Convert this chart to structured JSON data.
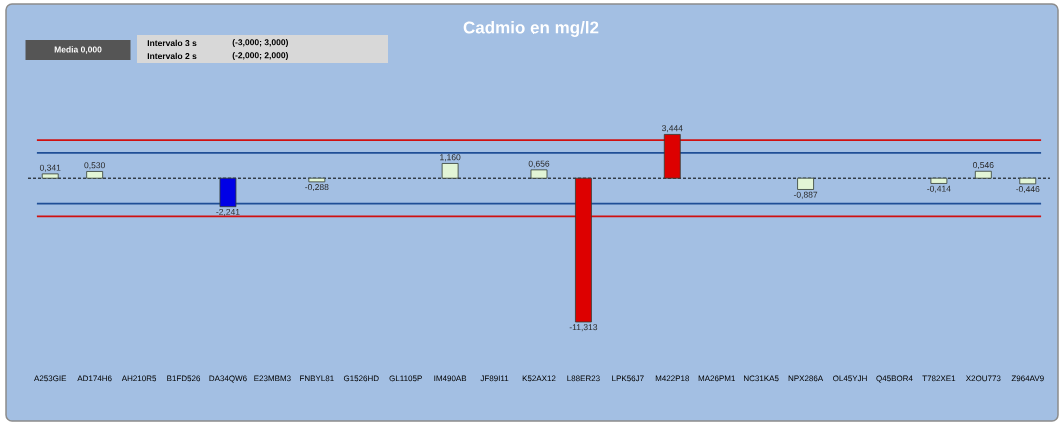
{
  "chart_data": {
    "type": "bar",
    "title": "Cadmio en mg/l2",
    "categories": [
      "A253GIE",
      "AD174H6",
      "AH210R5",
      "B1FD526",
      "DA34QW6",
      "E23MBM3",
      "FNBYL81",
      "G1526HD",
      "GL1105P",
      "IM490AB",
      "JF89I11",
      "K52AX12",
      "L88ER23",
      "LPK56J7",
      "M422P18",
      "MA26PM1",
      "NC31KA5",
      "NPX286A",
      "OL45YJH",
      "Q45BOR4",
      "T782XE1",
      "X2OU773",
      "Z964AV9"
    ],
    "values": [
      0.341,
      0.53,
      null,
      null,
      -2.241,
      null,
      -0.288,
      null,
      null,
      1.16,
      null,
      0.656,
      -11.313,
      null,
      3.444,
      null,
      null,
      -0.887,
      null,
      null,
      -0.414,
      0.546,
      -0.446
    ],
    "value_labels": [
      "0,341",
      "0,530",
      null,
      null,
      "-2,241",
      null,
      "-0,288",
      null,
      null,
      "1,160",
      null,
      "0,656",
      "-11,313",
      null,
      "3,444",
      null,
      null,
      "-0,887",
      null,
      null,
      "-0,414",
      "0,546",
      "-0,446"
    ],
    "colors": [
      "#e2f5d6",
      "#e2f5d6",
      "#e2f5d6",
      "#e2f5d6",
      "#0000e6",
      "#e2f5d6",
      "#e2f5d6",
      "#e2f5d6",
      "#e2f5d6",
      "#e2f5d6",
      "#e2f5d6",
      "#e2f5d6",
      "#dd0000",
      "#e2f5d6",
      "#dd0000",
      "#e2f5d6",
      "#e2f5d6",
      "#e2f5d6",
      "#e2f5d6",
      "#e2f5d6",
      "#e2f5d6",
      "#e2f5d6",
      "#e2f5d6"
    ],
    "ref_lines": [
      {
        "axis": "y",
        "value": 3,
        "color": "#d01010",
        "line_style": "solid"
      },
      {
        "axis": "y",
        "value": 2,
        "color": "#1f4e96",
        "line_style": "solid"
      },
      {
        "axis": "y",
        "value": 0,
        "color": "#000000",
        "line_style": "dashed"
      },
      {
        "axis": "y",
        "value": -2,
        "color": "#1f4e96",
        "line_style": "solid"
      },
      {
        "axis": "y",
        "value": -3,
        "color": "#d01010",
        "line_style": "solid"
      }
    ],
    "annotations": [
      "Media 0,000",
      "Intervalo 3 s",
      "(-3,000; 3,000)",
      "Intervalo 2 s",
      "(-2,000; 2,000)"
    ]
  }
}
